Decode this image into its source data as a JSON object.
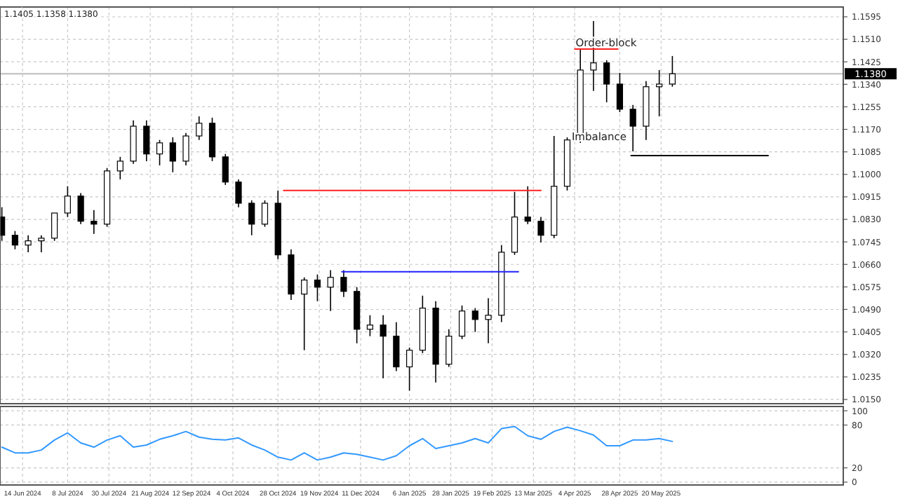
{
  "chart_data": [
    {
      "type": "candlestick",
      "annotations": [
        "1.1405 1.1358 1.1380",
        "Order-block",
        "Imbalance"
      ],
      "x": [
        "2024-06-03",
        "2024-06-10",
        "2024-06-17",
        "2024-06-24",
        "2024-07-01",
        "2024-07-08",
        "2024-07-15",
        "2024-07-22",
        "2024-07-29",
        "2024-08-05",
        "2024-08-12",
        "2024-08-19",
        "2024-08-26",
        "2024-09-02",
        "2024-09-09",
        "2024-09-16",
        "2024-09-23",
        "2024-09-30",
        "2024-10-07",
        "2024-10-14",
        "2024-10-21",
        "2024-10-28",
        "2024-11-04",
        "2024-11-11",
        "2024-11-18",
        "2024-11-25",
        "2024-12-02",
        "2024-12-09",
        "2024-12-16",
        "2024-12-23",
        "2024-12-30",
        "2025-01-06",
        "2025-01-13",
        "2025-01-20",
        "2025-01-27",
        "2025-02-03",
        "2025-02-10",
        "2025-02-17",
        "2025-02-24",
        "2025-03-03",
        "2025-03-10",
        "2025-03-17",
        "2025-03-24",
        "2025-03-31",
        "2025-04-07",
        "2025-04-14",
        "2025-04-21",
        "2025-04-28",
        "2025-05-05",
        "2025-05-12",
        "2025-05-19",
        "2025-05-26"
      ],
      "ohlc": [
        [
          1.0839,
          1.0876,
          1.0749,
          1.077
        ],
        [
          1.077,
          1.0786,
          1.0717,
          1.0733
        ],
        [
          1.0733,
          1.077,
          1.0706,
          1.0749
        ],
        [
          1.0749,
          1.077,
          1.0706,
          1.0759
        ],
        [
          1.0759,
          1.0854,
          1.0749,
          1.0854
        ],
        [
          1.0854,
          1.0955,
          1.0839,
          1.0918
        ],
        [
          1.0918,
          1.0929,
          1.0812,
          1.0823
        ],
        [
          1.0823,
          1.0865,
          1.0775,
          1.0812
        ],
        [
          1.0812,
          1.1024,
          1.0802,
          1.1013
        ],
        [
          1.1013,
          1.1066,
          1.0981,
          1.105
        ],
        [
          1.105,
          1.1204,
          1.104,
          1.1182
        ],
        [
          1.1182,
          1.1204,
          1.105,
          1.1077
        ],
        [
          1.1077,
          1.113,
          1.1034,
          1.1119
        ],
        [
          1.1119,
          1.114,
          1.1008,
          1.105
        ],
        [
          1.105,
          1.1156,
          1.1034,
          1.1145
        ],
        [
          1.1145,
          1.1219,
          1.113,
          1.1193
        ],
        [
          1.1193,
          1.1214,
          1.105,
          1.1066
        ],
        [
          1.1066,
          1.1077,
          1.096,
          1.0971
        ],
        [
          1.0971,
          1.0981,
          1.0876,
          1.0891
        ],
        [
          1.0891,
          1.0902,
          1.077,
          1.0812
        ],
        [
          1.0812,
          1.0902,
          1.0802,
          1.0891
        ],
        [
          1.0891,
          1.0939,
          1.068,
          1.0696
        ],
        [
          1.0696,
          1.0717,
          1.0526,
          1.0548
        ],
        [
          1.0548,
          1.0611,
          1.0336,
          1.0601
        ],
        [
          1.0601,
          1.0622,
          1.0521,
          1.0574
        ],
        [
          1.0574,
          1.0638,
          1.0484,
          1.0611
        ],
        [
          1.0611,
          1.0638,
          1.0537,
          1.0558
        ],
        [
          1.0558,
          1.0574,
          1.0362,
          1.0415
        ],
        [
          1.0415,
          1.0468,
          1.0389,
          1.0431
        ],
        [
          1.0431,
          1.0468,
          1.023,
          1.0389
        ],
        [
          1.0389,
          1.0442,
          1.0257,
          1.0273
        ],
        [
          1.0273,
          1.0346,
          1.0183,
          1.0336
        ],
        [
          1.0336,
          1.0542,
          1.0325,
          1.0495
        ],
        [
          1.0495,
          1.0521,
          1.0214,
          1.0283
        ],
        [
          1.0283,
          1.0415,
          1.0273,
          1.0389
        ],
        [
          1.0389,
          1.0505,
          1.0378,
          1.0484
        ],
        [
          1.0484,
          1.0495,
          1.0405,
          1.0452
        ],
        [
          1.0452,
          1.0532,
          1.0362,
          1.0468
        ],
        [
          1.0468,
          1.0733,
          1.0442,
          1.0706
        ],
        [
          1.0706,
          1.0934,
          1.0696,
          1.0839
        ],
        [
          1.0839,
          1.0955,
          1.0812,
          1.0823
        ],
        [
          1.0823,
          1.0839,
          1.0743,
          1.077
        ],
        [
          1.077,
          1.1145,
          1.0759,
          1.0955
        ],
        [
          1.0955,
          1.114,
          1.0939,
          1.113
        ],
        [
          1.113,
          1.1473,
          1.1119,
          1.1394
        ],
        [
          1.1394,
          1.1579,
          1.1315,
          1.1421
        ],
        [
          1.1421,
          1.1431,
          1.1272,
          1.1341
        ],
        [
          1.1341,
          1.1383,
          1.1235,
          1.1246
        ],
        [
          1.1246,
          1.1262,
          1.1087,
          1.1182
        ],
        [
          1.1182,
          1.1352,
          1.113,
          1.1331
        ],
        [
          1.1331,
          1.1394,
          1.1219,
          1.1341
        ],
        [
          1.1341,
          1.1447,
          1.1331,
          1.138
        ]
      ],
      "series": [
        {
          "type": "line",
          "color": "#ff2020",
          "x": [
            "2024-10-31",
            "2025-03-17"
          ],
          "values": [
            1.0939,
            1.0939
          ]
        },
        {
          "type": "line",
          "color": "#2020ff",
          "x": [
            "2024-12-01",
            "2025-03-05"
          ],
          "values": [
            1.0632,
            1.0632
          ]
        },
        {
          "type": "line",
          "color": "#000000",
          "x": [
            "2025-05-04",
            "2025-07-16"
          ],
          "values": [
            1.1071,
            1.1071
          ]
        },
        {
          "type": "line",
          "color": "#ff2020",
          "x": [
            "2025-04-04",
            "2025-04-27"
          ],
          "values": [
            1.1473,
            1.1473
          ]
        }
      ],
      "ref_lines": [
        {
          "axis": "y",
          "value": 1.138,
          "label": "1.1380",
          "color": "#c8c8c8"
        }
      ],
      "xlim": [
        "2024-06-02",
        "2025-08-25"
      ],
      "xticks": [
        {
          "value": "2024-06-14",
          "label": null
        },
        {
          "value": "2024-07-08",
          "label": null
        },
        {
          "value": "2024-07-30",
          "label": null
        },
        {
          "value": "2024-08-21",
          "label": null
        },
        {
          "value": "2024-09-12",
          "label": null
        },
        {
          "value": "2024-10-04",
          "label": null
        },
        {
          "value": "2024-10-28",
          "label": null
        },
        {
          "value": "2024-11-19",
          "label": null
        },
        {
          "value": "2024-12-11",
          "label": null
        },
        {
          "value": "2025-01-06",
          "label": null
        },
        {
          "value": "2025-01-28",
          "label": null
        },
        {
          "value": "2025-02-19",
          "label": null
        },
        {
          "value": "2025-03-13",
          "label": null
        },
        {
          "value": "2025-04-04",
          "label": null
        },
        {
          "value": "2025-04-28",
          "label": null
        },
        {
          "value": "2025-05-20",
          "label": null
        }
      ],
      "ylim": [
        1.0134,
        1.1632
      ],
      "yticks": [
        {
          "value": 1.015,
          "label": "1.0150"
        },
        {
          "value": 1.0235,
          "label": "1.0235"
        },
        {
          "value": 1.032,
          "label": "1.0320"
        },
        {
          "value": 1.0405,
          "label": "1.0405"
        },
        {
          "value": 1.049,
          "label": "1.0490"
        },
        {
          "value": 1.0575,
          "label": "1.0575"
        },
        {
          "value": 1.066,
          "label": "1.0660"
        },
        {
          "value": 1.0745,
          "label": "1.0745"
        },
        {
          "value": 1.083,
          "label": "1.0830"
        },
        {
          "value": 1.0915,
          "label": "1.0915"
        },
        {
          "value": 1.1,
          "label": "1.1000"
        },
        {
          "value": 1.1085,
          "label": "1.1085"
        },
        {
          "value": 1.117,
          "label": "1.1170"
        },
        {
          "value": 1.1255,
          "label": "1.1255"
        },
        {
          "value": 1.134,
          "label": "1.1340"
        },
        {
          "value": 1.1425,
          "label": "1.1425"
        },
        {
          "value": 1.151,
          "label": "1.1510"
        },
        {
          "value": 1.1595,
          "label": "1.1595"
        }
      ],
      "grid": true,
      "tick_labels": "y"
    },
    {
      "type": "line",
      "x": [
        "2024-06-03",
        "2024-06-10",
        "2024-06-17",
        "2024-06-24",
        "2024-07-01",
        "2024-07-08",
        "2024-07-15",
        "2024-07-22",
        "2024-07-29",
        "2024-08-05",
        "2024-08-12",
        "2024-08-19",
        "2024-08-26",
        "2024-09-02",
        "2024-09-09",
        "2024-09-16",
        "2024-09-23",
        "2024-09-30",
        "2024-10-07",
        "2024-10-14",
        "2024-10-21",
        "2024-10-28",
        "2024-11-04",
        "2024-11-11",
        "2024-11-18",
        "2024-11-25",
        "2024-12-02",
        "2024-12-09",
        "2024-12-16",
        "2024-12-23",
        "2024-12-30",
        "2025-01-06",
        "2025-01-13",
        "2025-01-20",
        "2025-01-27",
        "2025-02-03",
        "2025-02-10",
        "2025-02-17",
        "2025-02-24",
        "2025-03-03",
        "2025-03-10",
        "2025-03-17",
        "2025-03-24",
        "2025-03-31",
        "2025-04-07",
        "2025-04-14",
        "2025-04-21",
        "2025-04-28",
        "2025-05-05",
        "2025-05-12",
        "2025-05-19",
        "2025-05-26"
      ],
      "series": [
        {
          "color": "#3399ff",
          "values": [
            49,
            41,
            41,
            45,
            59,
            69,
            55,
            49,
            59,
            65,
            49,
            52,
            60,
            65,
            71,
            63,
            60,
            59,
            62,
            52,
            45,
            35,
            31,
            41,
            31,
            35,
            41,
            39,
            35,
            31,
            37,
            51,
            61,
            47,
            51,
            55,
            61,
            55,
            75,
            78,
            65,
            60,
            71,
            77,
            72,
            66,
            51,
            51,
            59,
            59,
            61,
            57
          ]
        }
      ],
      "xlim": [
        "2024-06-02",
        "2025-08-25"
      ],
      "xticks": [
        {
          "value": "2024-06-14",
          "label": "14 Jun 2024"
        },
        {
          "value": "2024-07-08",
          "label": "8 Jul 2024"
        },
        {
          "value": "2024-07-30",
          "label": "30 Jul 2024"
        },
        {
          "value": "2024-08-21",
          "label": "21 Aug 2024"
        },
        {
          "value": "2024-09-12",
          "label": "12 Sep 2024"
        },
        {
          "value": "2024-10-04",
          "label": "4 Oct 2024"
        },
        {
          "value": "2024-10-28",
          "label": "28 Oct 2024"
        },
        {
          "value": "2024-11-19",
          "label": "19 Nov 2024"
        },
        {
          "value": "2024-12-11",
          "label": "11 Dec 2024"
        },
        {
          "value": "2025-01-06",
          "label": "6 Jan 2025"
        },
        {
          "value": "2025-01-28",
          "label": "28 Jan 2025"
        },
        {
          "value": "2025-02-19",
          "label": "19 Feb 2025"
        },
        {
          "value": "2025-03-13",
          "label": "13 Mar 2025"
        },
        {
          "value": "2025-04-04",
          "label": "4 Apr 2025"
        },
        {
          "value": "2025-04-28",
          "label": "28 Apr 2025"
        },
        {
          "value": "2025-05-20",
          "label": "20 May 2025"
        }
      ],
      "ylim": [
        -4,
        106
      ],
      "yticks": [
        0,
        20,
        80,
        100
      ],
      "grid": true
    }
  ]
}
